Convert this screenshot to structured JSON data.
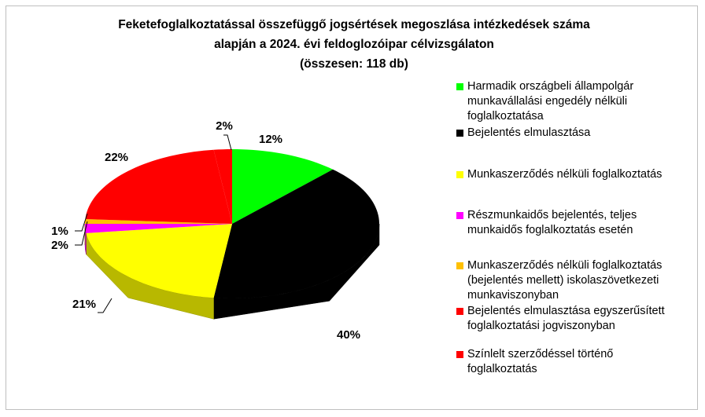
{
  "chart_data": {
    "type": "pie3d",
    "title": [
      "Feketefoglalkoztatással összefüggő jogsértések megoszlása intézkedések száma",
      "alapján a 2024. évi feldoglozóipar célvizsgálaton",
      "(összesen: 118 db)"
    ],
    "categories": [
      "Harmadik országbeli állampolgár munkavállalási engedély nélküli foglalkoztatása",
      "Bejelentés elmulasztása",
      "Munkaszerződés nélküli foglalkoztatás",
      "Részmunkaidős bejelentés, teljes munkaidős foglalkoztatás esetén",
      "Munkaszerződés nélküli foglalkoztatás (bejelentés mellett) iskolaszövetkezeti munkaviszonyban",
      "Bejelentés elmulasztása egyszerűsített foglalkoztatási jogviszonyban",
      "Színlelt szerződéssel történő foglalkoztatás"
    ],
    "values": [
      12,
      40,
      21,
      2,
      1,
      22,
      2
    ],
    "value_labels": [
      "12%",
      "40%",
      "21%",
      "2%",
      "1%",
      "22%",
      "2%"
    ],
    "colors": [
      "#00ff00",
      "#000000",
      "#ffff00",
      "#ff00ff",
      "#ffc000",
      "#ff0000",
      "#ff0000"
    ],
    "legend": "right"
  }
}
